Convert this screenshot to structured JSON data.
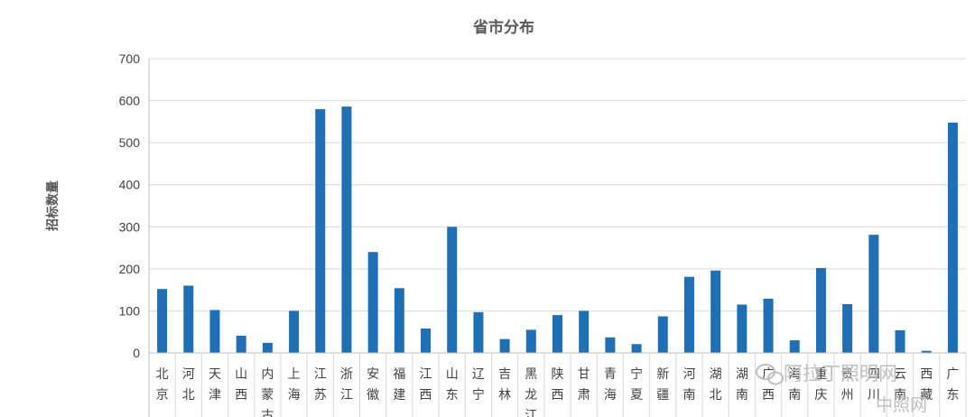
{
  "chart_data": {
    "type": "bar",
    "title": "省市分布",
    "ylabel": "招标数量",
    "xlabel": "",
    "ylim": [
      0,
      700
    ],
    "yticks": [
      0,
      100,
      200,
      300,
      400,
      500,
      600,
      700
    ],
    "grid": true,
    "legend": "none",
    "color": "#1f6fb5",
    "categories": [
      "北京",
      "河北",
      "天津",
      "山西",
      "内蒙古",
      "上海",
      "江苏",
      "浙江",
      "安徽",
      "福建",
      "江西",
      "山东",
      "辽宁",
      "吉林",
      "黑龙江",
      "陕西",
      "甘肃",
      "青海",
      "宁夏",
      "新疆",
      "河南",
      "湖北",
      "湖南",
      "广西",
      "海南",
      "重庆",
      "贵州",
      "四川",
      "云南",
      "西藏",
      "广东"
    ],
    "values": [
      152,
      160,
      102,
      41,
      24,
      100,
      580,
      586,
      240,
      154,
      58,
      300,
      97,
      33,
      55,
      90,
      100,
      37,
      21,
      87,
      181,
      196,
      115,
      129,
      30,
      202,
      116,
      281,
      54,
      5,
      548
    ]
  },
  "watermark": {
    "line1": "阿拉丁照明网",
    "line2": "中照网",
    "icon": "wechat-icon"
  }
}
